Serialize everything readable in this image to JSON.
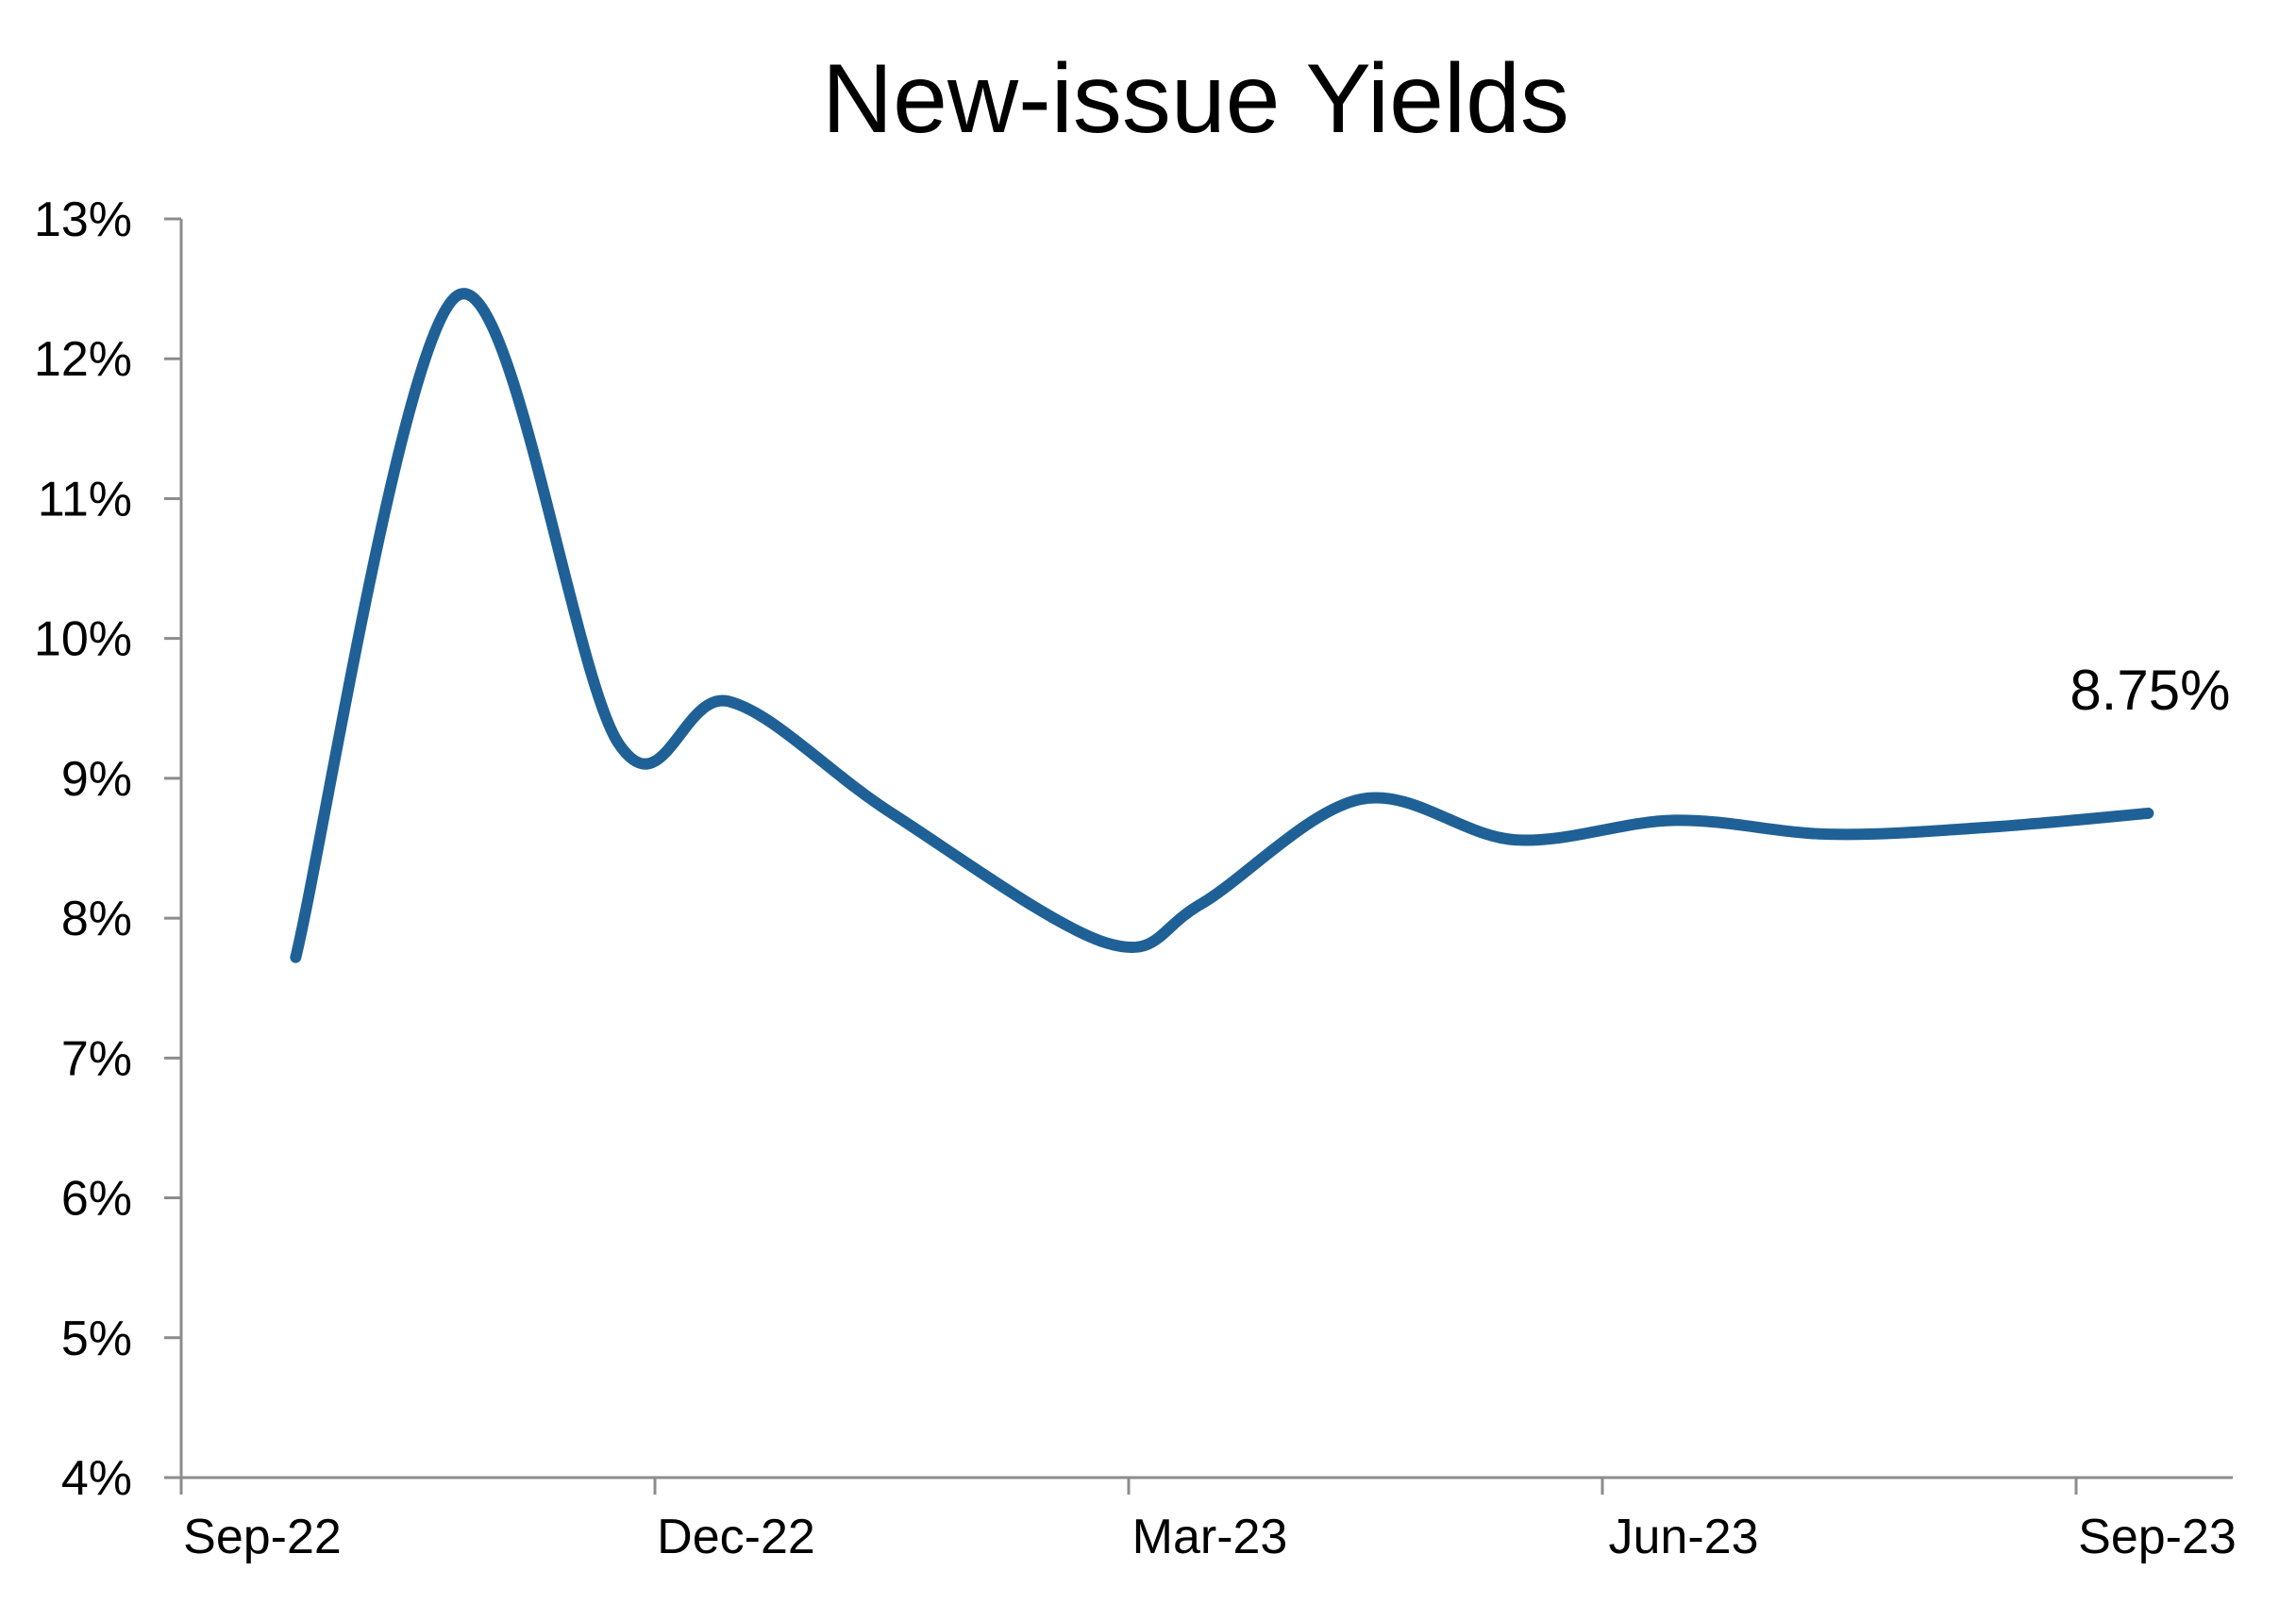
{
  "chart_data": {
    "type": "line",
    "title": "New-issue Yields",
    "xlabel": "",
    "ylabel": "",
    "ylim": [
      4,
      13
    ],
    "y_unit": "%",
    "y_ticks": [
      "4%",
      "5%",
      "6%",
      "7%",
      "8%",
      "9%",
      "10%",
      "11%",
      "12%",
      "13%"
    ],
    "x_ticks": [
      "Sep-22",
      "Dec-22",
      "Mar-23",
      "Jun-23",
      "Sep-23"
    ],
    "grid": false,
    "legend": "none",
    "series": [
      {
        "color": "#1f6196",
        "x": [
          "2022-09-23",
          "2022-10-24",
          "2022-11-24",
          "2022-12-15",
          "2023-01-15",
          "2023-02-25",
          "2023-03-15",
          "2023-04-15",
          "2023-05-15",
          "2023-06-15",
          "2023-07-15",
          "2023-08-15",
          "2023-09-15"
        ],
        "values": [
          7.72,
          12.45,
          9.25,
          9.55,
          8.75,
          7.82,
          8.1,
          8.85,
          8.56,
          8.7,
          8.6,
          8.65,
          8.75
        ]
      }
    ],
    "annotations": [
      {
        "text": "8.75%",
        "series_index": 0,
        "point_index": 12
      }
    ]
  }
}
